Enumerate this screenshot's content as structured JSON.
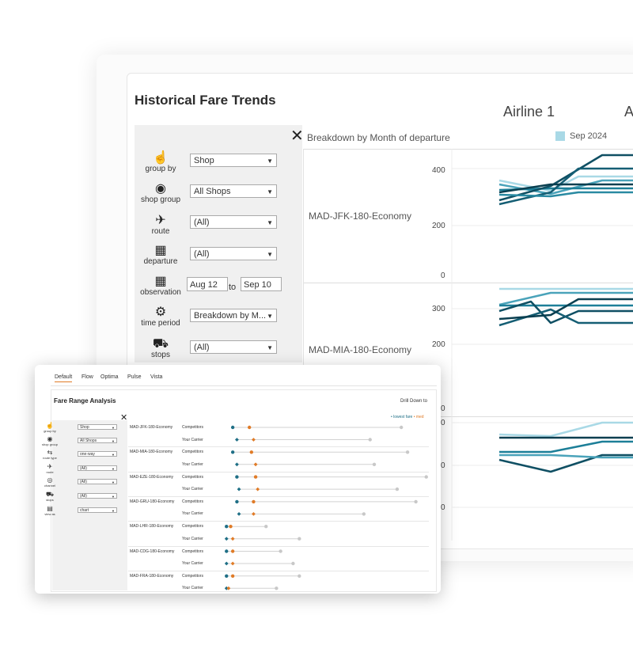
{
  "historical": {
    "title": "Historical Fare Trends",
    "airlines": [
      "Airline 1",
      "A"
    ],
    "chart_header": "Breakdown by Month of departure",
    "legend": "Sep 2024",
    "colors": {
      "legend": "#a9d9e6",
      "dark": "#0f4f63",
      "mid": "#1d7f98",
      "light": "#94cfdf"
    },
    "filters": [
      {
        "icon": "hand-pointer-icon",
        "glyph": "☝",
        "label": "group by",
        "value": "Shop"
      },
      {
        "icon": "shop-group-icon",
        "glyph": "◉",
        "label": "shop group",
        "value": "All Shops"
      },
      {
        "icon": "route-icon",
        "glyph": "✈",
        "label": "route",
        "value": "(All)"
      },
      {
        "icon": "calendar-icon",
        "glyph": "▦",
        "label": "departure",
        "value": "(All)"
      },
      {
        "icon": "calendar-icon",
        "glyph": "▦",
        "label": "observation",
        "from": "Aug 12",
        "to_label": "to",
        "to": "Sep 10"
      },
      {
        "icon": "gear-icon",
        "glyph": "⚙",
        "label": "time period",
        "value": "Breakdown by M..."
      },
      {
        "icon": "flight-stops-icon",
        "glyph": "⛟",
        "label": "stops",
        "value": "(All)"
      }
    ],
    "panes": [
      {
        "route": "MAD-JFK-180-Economy",
        "ticks": [
          "400",
          "200",
          "0"
        ]
      },
      {
        "route": "MAD-MIA-180-Economy",
        "ticks": [
          "300",
          "200",
          "0"
        ]
      },
      {
        "route": "",
        "ticks": [
          "0",
          "0",
          "0"
        ]
      }
    ]
  },
  "fare_range": {
    "tabs": [
      "Default",
      "Flow",
      "Optima",
      "Pulse",
      "Vista"
    ],
    "active_tab": "Default",
    "title": "Fare Range Analysis",
    "drill": "Drill Down to",
    "legend_lowest": "• lowest fare",
    "legend_median": "• med",
    "filters": [
      {
        "icon": "hand-pointer-icon",
        "glyph": "☝",
        "label": "group by",
        "value": "Shop"
      },
      {
        "icon": "shop-group-icon",
        "glyph": "◉",
        "label": "shop group",
        "value": "All Shops"
      },
      {
        "icon": "route-type-icon",
        "glyph": "⇆",
        "label": "route type",
        "value": "one-way"
      },
      {
        "icon": "route-icon",
        "glyph": "✈",
        "label": "route",
        "value": "(All)"
      },
      {
        "icon": "channel-icon",
        "glyph": "◎",
        "label": "channel",
        "value": "(All)"
      },
      {
        "icon": "flight-stops-icon",
        "glyph": "⛟",
        "label": "stops",
        "value": "(All)"
      },
      {
        "icon": "view-as-icon",
        "glyph": "▤",
        "label": "view as",
        "value": "chart"
      }
    ],
    "row_labels": {
      "competitors": "Competitors",
      "carrier": "Your Carrier"
    },
    "colors": {
      "lowest": "#1f6f86",
      "median": "#e07b27",
      "max": "#c8c8c8",
      "line": "#d2d2d2"
    },
    "routes": [
      {
        "name": "MAD-JFK-180-Economy",
        "competitors": [
          0.05,
          0.13,
          0.86
        ],
        "carrier": [
          0.07,
          0.15,
          0.71
        ]
      },
      {
        "name": "MAD-MIA-180-Economy",
        "competitors": [
          0.05,
          0.14,
          0.89
        ],
        "carrier": [
          0.07,
          0.16,
          0.73
        ]
      },
      {
        "name": "MAD-EZE-180-Economy",
        "competitors": [
          0.07,
          0.16,
          0.98
        ],
        "carrier": [
          0.08,
          0.17,
          0.84
        ]
      },
      {
        "name": "MAD-GRU-180-Economy",
        "competitors": [
          0.07,
          0.15,
          0.93
        ],
        "carrier": [
          0.08,
          0.15,
          0.68
        ]
      },
      {
        "name": "MAD-LHR-180-Economy",
        "competitors": [
          0.02,
          0.04,
          0.21
        ],
        "carrier": [
          0.02,
          0.05,
          0.37
        ]
      },
      {
        "name": "MAD-CDG-180-Economy",
        "competitors": [
          0.02,
          0.05,
          0.28
        ],
        "carrier": [
          0.02,
          0.05,
          0.34
        ]
      },
      {
        "name": "MAD-FRA-180-Economy",
        "competitors": [
          0.02,
          0.05,
          0.37
        ],
        "carrier": [
          0.02,
          0.03,
          0.26
        ]
      }
    ]
  }
}
